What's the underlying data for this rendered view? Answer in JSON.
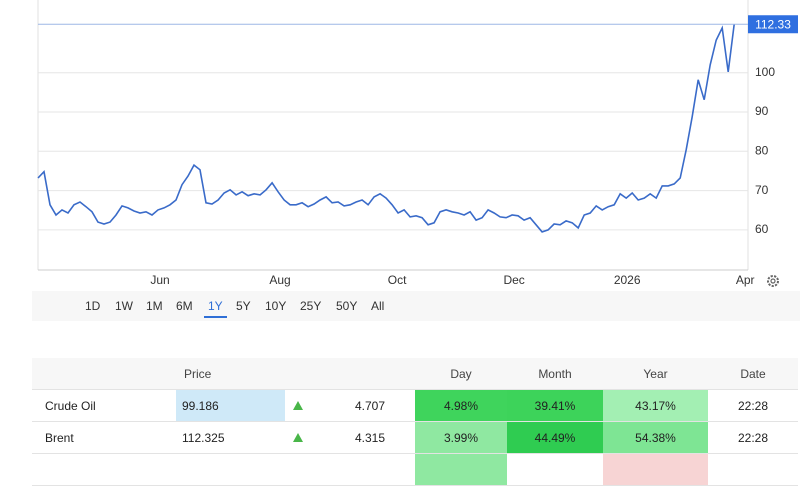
{
  "chart_data": {
    "type": "line",
    "color": "#3a6bc9",
    "values": [
      73.2,
      74.8,
      66.4,
      63.8,
      65.1,
      64.3,
      66.4,
      67.1,
      65.9,
      64.6,
      62,
      61.5,
      62,
      63.8,
      66.1,
      65.6,
      64.8,
      64.3,
      64.6,
      63.8,
      65.1,
      65.6,
      66.4,
      67.6,
      71.5,
      73.7,
      76.5,
      75.3,
      66.9,
      66.6,
      67.6,
      69.4,
      70.2,
      68.9,
      69.7,
      68.7,
      69.2,
      68.9,
      70.2,
      72,
      69.7,
      67.6,
      66.4,
      66.4,
      66.9,
      65.9,
      66.6,
      67.6,
      68.4,
      66.9,
      67.1,
      66.1,
      66.4,
      67.1,
      67.6,
      66.4,
      68.4,
      69.2,
      68.1,
      66.4,
      64.3,
      65.1,
      63.3,
      63.6,
      63.1,
      61.3,
      61.8,
      64.6,
      65.1,
      64.6,
      64.3,
      63.8,
      64.6,
      62.5,
      63.1,
      65.1,
      64.3,
      63.3,
      63.1,
      63.8,
      63.6,
      62.5,
      63.1,
      61.3,
      59.5,
      60,
      61.5,
      61.3,
      62.3,
      61.8,
      60.5,
      63.8,
      64.3,
      66.1,
      65.1,
      65.9,
      66.4,
      69.2,
      68.1,
      69.4,
      67.6,
      68.1,
      69.2,
      68.1,
      71.2,
      71.2,
      71.7,
      73.2,
      80.4,
      88.8,
      98.2,
      93.1,
      102,
      108.3,
      111.4,
      100.2,
      112.33
    ],
    "xlim": [
      0,
      118.3
    ],
    "xticks": [
      {
        "value": 20.33,
        "label": "Jun"
      },
      {
        "value": 40.33,
        "label": "Aug"
      },
      {
        "value": 59.83,
        "label": "Oct"
      },
      {
        "value": 79.33,
        "label": "Dec"
      },
      {
        "value": 98.17,
        "label": "2026"
      },
      {
        "value": 117.83,
        "label": "Apr"
      }
    ],
    "ylim": [
      49.8,
      118.5
    ],
    "yticks": [
      60,
      70,
      80,
      90,
      100
    ],
    "grid": true
  },
  "range_buttons": [
    "1D",
    "1W",
    "1M",
    "6M",
    "1Y",
    "5Y",
    "10Y",
    "25Y",
    "50Y",
    "All"
  ],
  "selected_range": 4,
  "table": {
    "header": [
      "Price",
      "Day",
      "Month",
      "Year",
      "Date"
    ],
    "rows": [
      {
        "name": "Crude Oil",
        "price": "99.186",
        "change": "4.707",
        "day": "4.98%",
        "month": "39.41%",
        "year": "43.17%",
        "date": "22:28"
      },
      {
        "name": "Brent",
        "price": "112.325",
        "change": "4.315",
        "day": "3.99%",
        "month": "44.49%",
        "year": "54.38%",
        "date": "22:28"
      }
    ]
  }
}
